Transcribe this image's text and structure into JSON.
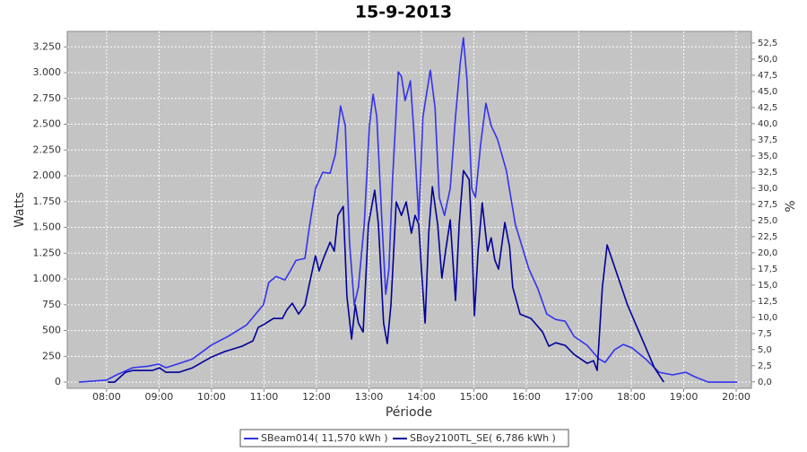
{
  "chart_data": {
    "type": "line",
    "title": "15-9-2013",
    "x_label": "Période",
    "y_label": "Watts",
    "y2_label": "%",
    "xlim": [
      7.25,
      20.29
    ],
    "ylim": [
      -60,
      3400
    ],
    "y2lim": [
      -1,
      54.3
    ],
    "grid": true,
    "legend": "bottom",
    "xticks": [
      {
        "value": 8,
        "label": "08:00"
      },
      {
        "value": 9,
        "label": "09:00"
      },
      {
        "value": 10,
        "label": "10:00"
      },
      {
        "value": 11,
        "label": "11:00"
      },
      {
        "value": 12,
        "label": "12:00"
      },
      {
        "value": 13,
        "label": "13:00"
      },
      {
        "value": 14,
        "label": "14:00"
      },
      {
        "value": 15,
        "label": "15:00"
      },
      {
        "value": 16,
        "label": "16:00"
      },
      {
        "value": 17,
        "label": "17:00"
      },
      {
        "value": 18,
        "label": "18:00"
      },
      {
        "value": 19,
        "label": "19:00"
      },
      {
        "value": 20,
        "label": "20:00"
      }
    ],
    "yticks": [
      0,
      250,
      500,
      750,
      {
        "value": 1000,
        "label": "1.000"
      },
      {
        "value": 1250,
        "label": "1.250"
      },
      {
        "value": 1500,
        "label": "1.500"
      },
      {
        "value": 1750,
        "label": "1.750"
      },
      {
        "value": 2000,
        "label": "2.000"
      },
      {
        "value": 2250,
        "label": "2.250"
      },
      {
        "value": 2500,
        "label": "2.500"
      },
      {
        "value": 2750,
        "label": "2.750"
      },
      {
        "value": 3000,
        "label": "3.000"
      },
      {
        "value": 3250,
        "label": "3.250"
      }
    ],
    "y2ticks": [
      {
        "value": 0,
        "label": "0,0"
      },
      {
        "value": 2.5,
        "label": "2,5"
      },
      {
        "value": 5,
        "label": "5,0"
      },
      {
        "value": 7.5,
        "label": "7,5"
      },
      {
        "value": 10,
        "label": "10,0"
      },
      {
        "value": 12.5,
        "label": "12,5"
      },
      {
        "value": 15,
        "label": "15,0"
      },
      {
        "value": 17.5,
        "label": "17,5"
      },
      {
        "value": 20,
        "label": "20,0"
      },
      {
        "value": 22.5,
        "label": "22,5"
      },
      {
        "value": 25,
        "label": "25,0"
      },
      {
        "value": 27.5,
        "label": "27,5"
      },
      {
        "value": 30,
        "label": "30,0"
      },
      {
        "value": 32.5,
        "label": "32,5"
      },
      {
        "value": 35,
        "label": "35,0"
      },
      {
        "value": 37.5,
        "label": "37,5"
      },
      {
        "value": 40,
        "label": "40,0"
      },
      {
        "value": 42.5,
        "label": "42,5"
      },
      {
        "value": 45,
        "label": "45,0"
      },
      {
        "value": 47.5,
        "label": "47,5"
      },
      {
        "value": 50,
        "label": "50,0"
      },
      {
        "value": 52.5,
        "label": "52,5"
      }
    ],
    "series": [
      {
        "name": "SBeam014( 11,570 kWh )",
        "color": "#3333ee",
        "x": [
          7.47,
          8.0,
          8.19,
          8.5,
          8.79,
          8.99,
          9.13,
          9.38,
          9.64,
          10.0,
          10.32,
          10.67,
          10.99,
          11.09,
          11.23,
          11.4,
          11.52,
          11.61,
          11.78,
          11.86,
          11.98,
          12.12,
          12.26,
          12.36,
          12.46,
          12.55,
          12.63,
          12.72,
          12.8,
          12.91,
          13.01,
          13.08,
          13.15,
          13.25,
          13.32,
          13.38,
          13.45,
          13.56,
          13.62,
          13.69,
          13.79,
          13.86,
          13.95,
          14.03,
          14.17,
          14.26,
          14.34,
          14.44,
          14.55,
          14.65,
          14.74,
          14.8,
          14.87,
          14.96,
          15.03,
          15.13,
          15.23,
          15.33,
          15.45,
          15.62,
          15.79,
          16.05,
          16.22,
          16.39,
          16.56,
          16.74,
          16.91,
          17.16,
          17.38,
          17.5,
          17.68,
          17.85,
          18.02,
          18.27,
          18.53,
          18.79,
          19.04,
          19.21,
          19.47,
          20.02
        ],
        "values": [
          0,
          20,
          70,
          140,
          155,
          175,
          140,
          180,
          225,
          360,
          445,
          555,
          750,
          965,
          1025,
          990,
          1095,
          1180,
          1200,
          1485,
          1877,
          2033,
          2025,
          2207,
          2677,
          2485,
          1356,
          747,
          921,
          1530,
          2485,
          2790,
          2572,
          1530,
          852,
          1095,
          1964,
          3007,
          2963,
          2729,
          2920,
          2398,
          1573,
          2572,
          3024,
          2659,
          1790,
          1616,
          1877,
          2572,
          3094,
          3337,
          2920,
          1877,
          1790,
          2311,
          2703,
          2485,
          2355,
          2051,
          1530,
          1095,
          904,
          660,
          608,
          590,
          443,
          356,
          226,
          191,
          313,
          365,
          330,
          226,
          96,
          70,
          96,
          52,
          0,
          0
        ]
      },
      {
        "name": "SBoy2100TL_SE( 6,786 kWh )",
        "color": "#000099",
        "x": [
          8.02,
          8.15,
          8.36,
          8.5,
          8.7,
          8.87,
          9.01,
          9.13,
          9.38,
          9.64,
          10.0,
          10.24,
          10.58,
          10.79,
          10.89,
          10.99,
          11.18,
          11.35,
          11.44,
          11.54,
          11.66,
          11.78,
          11.86,
          11.98,
          12.05,
          12.12,
          12.26,
          12.34,
          12.41,
          12.51,
          12.58,
          12.67,
          12.74,
          12.8,
          12.89,
          12.99,
          13.11,
          13.18,
          13.28,
          13.35,
          13.42,
          13.52,
          13.62,
          13.71,
          13.81,
          13.88,
          13.95,
          14.0,
          14.07,
          14.14,
          14.21,
          14.31,
          14.39,
          14.46,
          14.55,
          14.65,
          14.72,
          14.8,
          14.91,
          14.96,
          15.01,
          15.08,
          15.16,
          15.26,
          15.33,
          15.4,
          15.47,
          15.59,
          15.68,
          15.74,
          15.88,
          16.09,
          16.31,
          16.43,
          16.56,
          16.74,
          16.91,
          17.16,
          17.28,
          17.35,
          17.45,
          17.54,
          17.93,
          18.44,
          18.62
        ],
        "values": [
          0,
          0,
          96,
          113,
          113,
          113,
          139,
          96,
          96,
          139,
          243,
          295,
          348,
          400,
          530,
          556,
          617,
          617,
          704,
          765,
          660,
          747,
          938,
          1225,
          1078,
          1182,
          1356,
          1269,
          1616,
          1703,
          834,
          417,
          747,
          573,
          486,
          1530,
          1860,
          1530,
          573,
          374,
          747,
          1747,
          1616,
          1747,
          1443,
          1616,
          1530,
          1095,
          573,
          1443,
          1894,
          1530,
          1008,
          1269,
          1573,
          791,
          1530,
          2051,
          1964,
          1443,
          643,
          1269,
          1738,
          1269,
          1399,
          1182,
          1095,
          1547,
          1312,
          921,
          660,
          617,
          486,
          348,
          382,
          356,
          269,
          182,
          208,
          113,
          921,
          1330,
          747,
          139,
          0
        ]
      }
    ]
  }
}
